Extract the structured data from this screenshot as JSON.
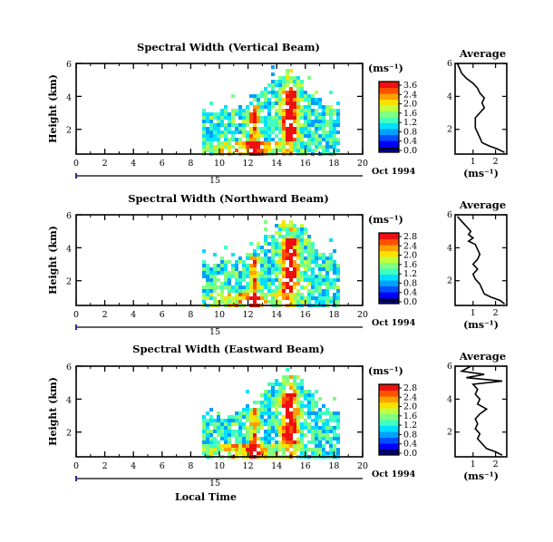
{
  "chart_data": [
    {
      "type": "heatmap",
      "title": "Spectral Width (Vertical Beam)",
      "ylabel": "Height (km)",
      "colorbar_label": "(ms⁻¹)",
      "colorbar_ticks": [
        "3.6",
        "2.4",
        "2.0",
        "1.6",
        "1.2",
        "0.8",
        "0.4",
        "0.0"
      ],
      "xticks": [
        "0",
        "2",
        "4",
        "6",
        "8",
        "10",
        "12",
        "14",
        "16",
        "18",
        "20"
      ],
      "yticks": [
        "6",
        "4",
        "2"
      ],
      "xlim": [
        0,
        20
      ],
      "ylim": [
        0.5,
        6
      ],
      "date_label": "Oct 1994",
      "day_label": "15",
      "data_extent_hours": [
        8.8,
        18.3
      ],
      "profile": {
        "title": "Average",
        "xlabel": "(ms⁻¹)",
        "xticks": [
          "1",
          "2"
        ],
        "yticks": [
          "6",
          "4",
          "2"
        ],
        "xlim": [
          0.2,
          2.5
        ],
        "ylim": [
          0.5,
          6
        ],
        "points": [
          [
            0.3,
            6.0
          ],
          [
            0.5,
            5.4
          ],
          [
            0.7,
            5.1
          ],
          [
            1.0,
            4.8
          ],
          [
            1.2,
            4.5
          ],
          [
            1.3,
            4.2
          ],
          [
            1.5,
            3.9
          ],
          [
            1.4,
            3.6
          ],
          [
            1.5,
            3.3
          ],
          [
            1.3,
            3.0
          ],
          [
            1.1,
            2.7
          ],
          [
            1.1,
            2.4
          ],
          [
            1.1,
            2.1
          ],
          [
            1.2,
            1.8
          ],
          [
            1.3,
            1.5
          ],
          [
            1.4,
            1.2
          ],
          [
            1.7,
            1.0
          ],
          [
            2.1,
            0.8
          ],
          [
            2.4,
            0.6
          ]
        ]
      }
    },
    {
      "type": "heatmap",
      "title": "Spectral Width (Northward Beam)",
      "ylabel": "Height (km)",
      "colorbar_label": "(ms⁻¹)",
      "colorbar_ticks": [
        "2.8",
        "2.4",
        "2.0",
        "1.6",
        "1.2",
        "0.8",
        "0.4",
        "0.0"
      ],
      "xticks": [
        "0",
        "2",
        "4",
        "6",
        "8",
        "10",
        "12",
        "14",
        "16",
        "18",
        "20"
      ],
      "yticks": [
        "6",
        "4",
        "2"
      ],
      "xlim": [
        0,
        20
      ],
      "ylim": [
        0.5,
        6
      ],
      "date_label": "Oct 1994",
      "day_label": "15",
      "data_extent_hours": [
        8.8,
        18.3
      ],
      "profile": {
        "title": "Average",
        "xlabel": "(ms⁻¹)",
        "xticks": [
          "1",
          "2"
        ],
        "yticks": [
          "6",
          "4",
          "2"
        ],
        "xlim": [
          0.2,
          2.5
        ],
        "ylim": [
          0.5,
          6
        ],
        "points": [
          [
            0.3,
            5.9
          ],
          [
            0.5,
            5.6
          ],
          [
            0.7,
            5.3
          ],
          [
            0.9,
            5.0
          ],
          [
            0.8,
            4.8
          ],
          [
            1.0,
            4.6
          ],
          [
            0.8,
            4.4
          ],
          [
            1.1,
            4.2
          ],
          [
            1.2,
            3.9
          ],
          [
            1.3,
            3.6
          ],
          [
            1.2,
            3.3
          ],
          [
            1.0,
            3.0
          ],
          [
            1.2,
            2.7
          ],
          [
            1.0,
            2.4
          ],
          [
            1.1,
            2.1
          ],
          [
            1.3,
            1.8
          ],
          [
            1.4,
            1.5
          ],
          [
            1.5,
            1.2
          ],
          [
            1.8,
            1.0
          ],
          [
            2.2,
            0.8
          ],
          [
            2.4,
            0.6
          ]
        ]
      }
    },
    {
      "type": "heatmap",
      "title": "Spectral Width (Eastward Beam)",
      "ylabel": "Height (km)",
      "xlabel": "Local Time",
      "colorbar_label": "(ms⁻¹)",
      "colorbar_ticks": [
        "2.8",
        "2.4",
        "2.0",
        "1.6",
        "1.2",
        "0.8",
        "0.4",
        "0.0"
      ],
      "xticks": [
        "0",
        "2",
        "4",
        "6",
        "8",
        "10",
        "12",
        "14",
        "16",
        "18",
        "20"
      ],
      "yticks": [
        "6",
        "4",
        "2"
      ],
      "xlim": [
        0,
        20
      ],
      "ylim": [
        0.5,
        6
      ],
      "date_label": "Oct 1994",
      "day_label": "15",
      "data_extent_hours": [
        8.8,
        18.3
      ],
      "profile": {
        "title": "Average",
        "xlabel": "(ms⁻¹)",
        "xticks": [
          "1",
          "2"
        ],
        "yticks": [
          "6",
          "4",
          "2"
        ],
        "xlim": [
          0.2,
          2.5
        ],
        "ylim": [
          0.5,
          6
        ],
        "points": [
          [
            0.9,
            6.0
          ],
          [
            0.5,
            5.7
          ],
          [
            1.5,
            5.5
          ],
          [
            0.7,
            5.3
          ],
          [
            2.3,
            5.1
          ],
          [
            1.0,
            4.9
          ],
          [
            1.2,
            4.6
          ],
          [
            1.1,
            4.3
          ],
          [
            1.3,
            4.0
          ],
          [
            1.2,
            3.7
          ],
          [
            1.6,
            3.4
          ],
          [
            1.3,
            3.1
          ],
          [
            1.1,
            2.8
          ],
          [
            1.2,
            2.5
          ],
          [
            1.1,
            2.2
          ],
          [
            1.3,
            1.9
          ],
          [
            1.2,
            1.6
          ],
          [
            1.4,
            1.3
          ],
          [
            1.6,
            1.0
          ],
          [
            2.0,
            0.8
          ],
          [
            2.3,
            0.6
          ]
        ]
      }
    }
  ]
}
